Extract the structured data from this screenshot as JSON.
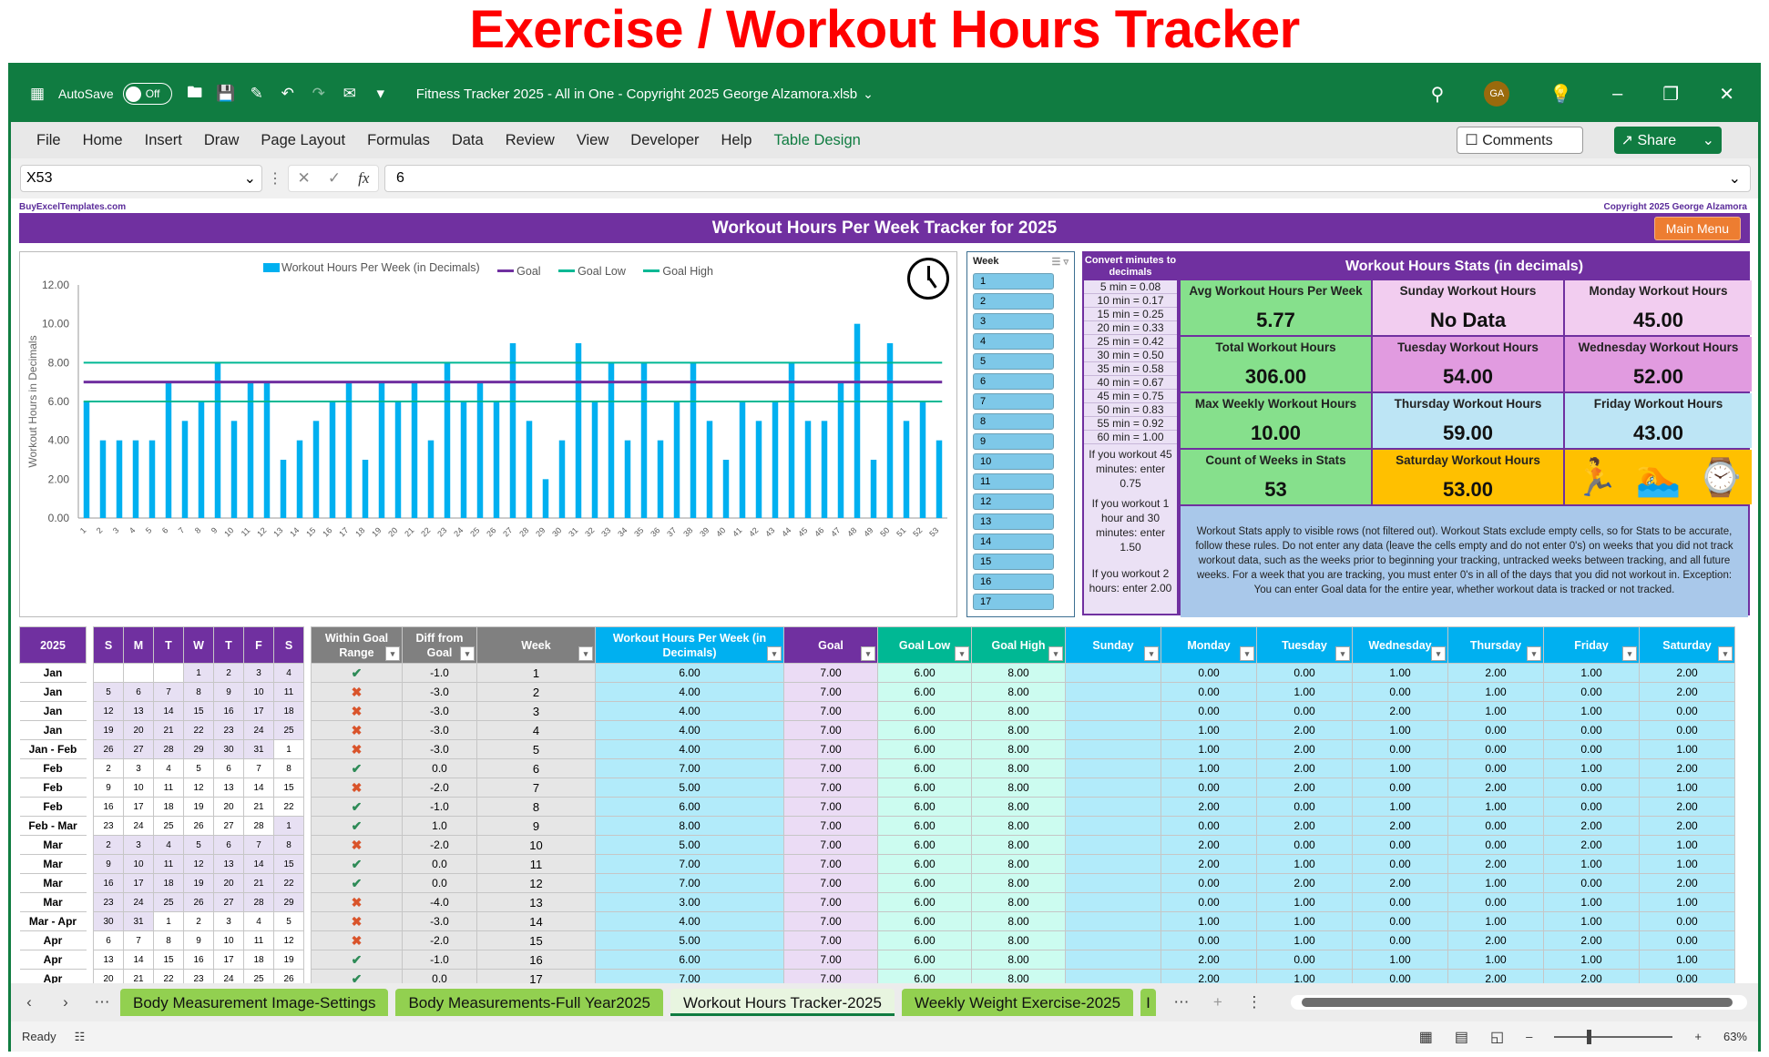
{
  "banner": {
    "title": "Exercise / Workout Hours Tracker"
  },
  "titlebar": {
    "autosave_label": "AutoSave",
    "autosave_state": "Off",
    "document_title": "Fitness Tracker 2025 - All in One - Copyright 2025 George Alzamora.xlsb",
    "avatar_initials": "GA"
  },
  "menu": {
    "items": [
      "File",
      "Home",
      "Insert",
      "Draw",
      "Page Layout",
      "Formulas",
      "Data",
      "Review",
      "View",
      "Developer",
      "Help",
      "Table Design"
    ],
    "comments_label": "Comments",
    "share_label": "Share"
  },
  "formula_bar": {
    "name_box": "X53",
    "fx_label": "fx",
    "value": "6"
  },
  "sheet": {
    "site_label": "BuyExcelTemplates.com",
    "copyright": "Copyright 2025  George Alzamora",
    "header_title": "Workout Hours Per Week Tracker for 2025",
    "main_menu_label": "Main Menu"
  },
  "chart_data": {
    "type": "bar",
    "title": "",
    "xlabel": "",
    "ylabel": "Workout  Hours in Decimals",
    "ylim": [
      0,
      12
    ],
    "yticks": [
      "0.00",
      "2.00",
      "4.00",
      "6.00",
      "8.00",
      "10.00",
      "12.00"
    ],
    "categories": [
      1,
      2,
      3,
      4,
      5,
      6,
      7,
      8,
      9,
      10,
      11,
      12,
      13,
      14,
      15,
      16,
      17,
      18,
      19,
      20,
      21,
      22,
      23,
      24,
      25,
      26,
      27,
      28,
      29,
      30,
      31,
      32,
      33,
      34,
      35,
      36,
      37,
      38,
      39,
      40,
      41,
      42,
      43,
      44,
      45,
      46,
      47,
      48,
      49,
      50,
      51,
      52,
      53
    ],
    "series": [
      {
        "name": "Workout Hours Per Week (in Decimals)",
        "type": "bar",
        "color": "#00b0f0",
        "values": [
          6,
          4,
          4,
          4,
          4,
          7,
          5,
          6,
          8,
          5,
          7,
          7,
          3,
          4,
          5,
          6,
          7,
          3,
          7,
          6,
          7,
          4,
          8,
          6,
          7,
          6,
          9,
          5,
          2,
          4,
          9,
          6,
          8,
          4,
          8,
          4,
          6,
          8,
          5,
          3,
          6,
          5,
          6,
          8,
          5,
          5,
          7,
          10,
          3,
          9,
          5,
          6,
          4
        ]
      },
      {
        "name": "Goal",
        "type": "line",
        "color": "#7030a0",
        "values": "constant 7.00"
      },
      {
        "name": "Goal Low",
        "type": "line",
        "color": "#00b894",
        "values": "constant 6.00"
      },
      {
        "name": "Goal High",
        "type": "line",
        "color": "#00b894",
        "values": "constant 8.00"
      }
    ],
    "legend_position": "top",
    "grid": false
  },
  "slicer": {
    "title": "Week",
    "items": [
      "1",
      "2",
      "3",
      "4",
      "5",
      "6",
      "7",
      "8",
      "9",
      "10",
      "11",
      "12",
      "13",
      "14",
      "15",
      "16",
      "17"
    ]
  },
  "converter": {
    "title": "Convert minutes to decimals",
    "rows": [
      "5 min  = 0.08",
      "10 min  = 0.17",
      "15 min  = 0.25",
      "20 min  = 0.33",
      "25 min  = 0.42",
      "30 min  = 0.50",
      "35 min  = 0.58",
      "40 min  = 0.67",
      "45 min  = 0.75",
      "50 min  = 0.83",
      "55 min  = 0.92",
      "60 min = 1.00"
    ],
    "note1": "If you workout 45 minutes: enter 0.75",
    "note2": "If you workout 1 hour and 30 minutes: enter 1.50",
    "note3": "If you workout 2 hours: enter 2.00"
  },
  "stats": {
    "title": "Workout Hours Stats (in decimals)",
    "cells": [
      {
        "label": "Avg Workout Hours Per Week",
        "value": "5.77"
      },
      {
        "label": "Sunday Workout Hours",
        "value": "No Data"
      },
      {
        "label": "Monday Workout Hours",
        "value": "45.00"
      },
      {
        "label": "Total Workout Hours",
        "value": "306.00"
      },
      {
        "label": "Tuesday Workout Hours",
        "value": "54.00"
      },
      {
        "label": "Wednesday Workout Hours",
        "value": "52.00"
      },
      {
        "label": "Max Weekly Workout Hours",
        "value": "10.00"
      },
      {
        "label": "Thursday Workout Hours",
        "value": "59.00"
      },
      {
        "label": "Friday Workout Hours",
        "value": "43.00"
      },
      {
        "label": "Count of Weeks in Stats",
        "value": "53"
      },
      {
        "label": "Saturday Workout Hours",
        "value": "53.00"
      }
    ],
    "icons": [
      "running-person-icon",
      "swimmer-icon",
      "smartwatch-icon"
    ],
    "note": "Workout Stats apply to visible rows (not filtered out). Workout Stats exclude empty cells, so for Stats to be accurate, follow these rules. Do not enter any data (leave the cells empty and do not enter 0's) on weeks that you did not track workout data, such as the weeks prior to beginning your tracking, untracked weeks between tracking, and all future weeks. For a week that you are tracking, you must enter 0's in all of the days that you did not workout in. Exception: You can enter Goal data for the entire year, whether workout data is tracked or not tracked."
  },
  "table": {
    "year": "2025",
    "cal_headers": [
      "S",
      "M",
      "T",
      "W",
      "T",
      "F",
      "S"
    ],
    "headers": [
      "Within Goal Range",
      "Diff from Goal",
      "Week",
      "Workout Hours Per Week (in Decimals)",
      "Goal",
      "Goal Low",
      "Goal High",
      "Sunday",
      "Monday",
      "Tuesday",
      "Wednesday",
      "Thursday",
      "Friday",
      "Saturday"
    ],
    "rows": [
      {
        "month": "Jan",
        "cal": [
          "",
          "",
          "",
          "1",
          "2",
          "3",
          "4"
        ],
        "ok": true,
        "diff": "-1.0",
        "week": "1",
        "hours": "6.00",
        "goal": "7.00",
        "low": "6.00",
        "high": "8.00",
        "days": [
          "",
          "0.00",
          "0.00",
          "1.00",
          "2.00",
          "1.00",
          "2.00"
        ]
      },
      {
        "month": "Jan",
        "cal": [
          "5",
          "6",
          "7",
          "8",
          "9",
          "10",
          "11"
        ],
        "ok": false,
        "diff": "-3.0",
        "week": "2",
        "hours": "4.00",
        "goal": "7.00",
        "low": "6.00",
        "high": "8.00",
        "days": [
          "",
          "0.00",
          "1.00",
          "0.00",
          "1.00",
          "0.00",
          "2.00"
        ]
      },
      {
        "month": "Jan",
        "cal": [
          "12",
          "13",
          "14",
          "15",
          "16",
          "17",
          "18"
        ],
        "ok": false,
        "diff": "-3.0",
        "week": "3",
        "hours": "4.00",
        "goal": "7.00",
        "low": "6.00",
        "high": "8.00",
        "days": [
          "",
          "0.00",
          "0.00",
          "2.00",
          "1.00",
          "1.00",
          "0.00"
        ]
      },
      {
        "month": "Jan",
        "cal": [
          "19",
          "20",
          "21",
          "22",
          "23",
          "24",
          "25"
        ],
        "ok": false,
        "diff": "-3.0",
        "week": "4",
        "hours": "4.00",
        "goal": "7.00",
        "low": "6.00",
        "high": "8.00",
        "days": [
          "",
          "1.00",
          "2.00",
          "1.00",
          "0.00",
          "0.00",
          "0.00"
        ]
      },
      {
        "month": "Jan - Feb",
        "cal": [
          "26",
          "27",
          "28",
          "29",
          "30",
          "31",
          "1"
        ],
        "ok": false,
        "diff": "-3.0",
        "week": "5",
        "hours": "4.00",
        "goal": "7.00",
        "low": "6.00",
        "high": "8.00",
        "days": [
          "",
          "1.00",
          "2.00",
          "0.00",
          "0.00",
          "0.00",
          "1.00"
        ]
      },
      {
        "month": "Feb",
        "cal": [
          "2",
          "3",
          "4",
          "5",
          "6",
          "7",
          "8"
        ],
        "ok": true,
        "diff": "0.0",
        "week": "6",
        "hours": "7.00",
        "goal": "7.00",
        "low": "6.00",
        "high": "8.00",
        "days": [
          "",
          "1.00",
          "2.00",
          "1.00",
          "0.00",
          "1.00",
          "2.00"
        ]
      },
      {
        "month": "Feb",
        "cal": [
          "9",
          "10",
          "11",
          "12",
          "13",
          "14",
          "15"
        ],
        "ok": false,
        "diff": "-2.0",
        "week": "7",
        "hours": "5.00",
        "goal": "7.00",
        "low": "6.00",
        "high": "8.00",
        "days": [
          "",
          "0.00",
          "2.00",
          "0.00",
          "2.00",
          "0.00",
          "1.00"
        ]
      },
      {
        "month": "Feb",
        "cal": [
          "16",
          "17",
          "18",
          "19",
          "20",
          "21",
          "22"
        ],
        "ok": true,
        "diff": "-1.0",
        "week": "8",
        "hours": "6.00",
        "goal": "7.00",
        "low": "6.00",
        "high": "8.00",
        "days": [
          "",
          "2.00",
          "0.00",
          "1.00",
          "1.00",
          "0.00",
          "2.00"
        ]
      },
      {
        "month": "Feb - Mar",
        "cal": [
          "23",
          "24",
          "25",
          "26",
          "27",
          "28",
          "1"
        ],
        "ok": true,
        "diff": "1.0",
        "week": "9",
        "hours": "8.00",
        "goal": "7.00",
        "low": "6.00",
        "high": "8.00",
        "days": [
          "",
          "0.00",
          "2.00",
          "2.00",
          "0.00",
          "2.00",
          "2.00"
        ]
      },
      {
        "month": "Mar",
        "cal": [
          "2",
          "3",
          "4",
          "5",
          "6",
          "7",
          "8"
        ],
        "ok": false,
        "diff": "-2.0",
        "week": "10",
        "hours": "5.00",
        "goal": "7.00",
        "low": "6.00",
        "high": "8.00",
        "days": [
          "",
          "2.00",
          "0.00",
          "0.00",
          "0.00",
          "2.00",
          "1.00"
        ]
      },
      {
        "month": "Mar",
        "cal": [
          "9",
          "10",
          "11",
          "12",
          "13",
          "14",
          "15"
        ],
        "ok": true,
        "diff": "0.0",
        "week": "11",
        "hours": "7.00",
        "goal": "7.00",
        "low": "6.00",
        "high": "8.00",
        "days": [
          "",
          "2.00",
          "1.00",
          "0.00",
          "2.00",
          "1.00",
          "1.00"
        ]
      },
      {
        "month": "Mar",
        "cal": [
          "16",
          "17",
          "18",
          "19",
          "20",
          "21",
          "22"
        ],
        "ok": true,
        "diff": "0.0",
        "week": "12",
        "hours": "7.00",
        "goal": "7.00",
        "low": "6.00",
        "high": "8.00",
        "days": [
          "",
          "0.00",
          "2.00",
          "2.00",
          "1.00",
          "0.00",
          "2.00"
        ]
      },
      {
        "month": "Mar",
        "cal": [
          "23",
          "24",
          "25",
          "26",
          "27",
          "28",
          "29"
        ],
        "ok": false,
        "diff": "-4.0",
        "week": "13",
        "hours": "3.00",
        "goal": "7.00",
        "low": "6.00",
        "high": "8.00",
        "days": [
          "",
          "0.00",
          "1.00",
          "0.00",
          "0.00",
          "1.00",
          "1.00"
        ]
      },
      {
        "month": "Mar - Apr",
        "cal": [
          "30",
          "31",
          "1",
          "2",
          "3",
          "4",
          "5"
        ],
        "ok": false,
        "diff": "-3.0",
        "week": "14",
        "hours": "4.00",
        "goal": "7.00",
        "low": "6.00",
        "high": "8.00",
        "days": [
          "",
          "1.00",
          "1.00",
          "0.00",
          "1.00",
          "1.00",
          "0.00"
        ]
      },
      {
        "month": "Apr",
        "cal": [
          "6",
          "7",
          "8",
          "9",
          "10",
          "11",
          "12"
        ],
        "ok": false,
        "diff": "-2.0",
        "week": "15",
        "hours": "5.00",
        "goal": "7.00",
        "low": "6.00",
        "high": "8.00",
        "days": [
          "",
          "0.00",
          "1.00",
          "0.00",
          "2.00",
          "2.00",
          "0.00"
        ]
      },
      {
        "month": "Apr",
        "cal": [
          "13",
          "14",
          "15",
          "16",
          "17",
          "18",
          "19"
        ],
        "ok": true,
        "diff": "-1.0",
        "week": "16",
        "hours": "6.00",
        "goal": "7.00",
        "low": "6.00",
        "high": "8.00",
        "days": [
          "",
          "2.00",
          "0.00",
          "1.00",
          "1.00",
          "1.00",
          "1.00"
        ]
      },
      {
        "month": "Apr",
        "cal": [
          "20",
          "21",
          "22",
          "23",
          "24",
          "25",
          "26"
        ],
        "ok": true,
        "diff": "0.0",
        "week": "17",
        "hours": "7.00",
        "goal": "7.00",
        "low": "6.00",
        "high": "8.00",
        "days": [
          "",
          "2.00",
          "1.00",
          "0.00",
          "2.00",
          "2.00",
          "0.00"
        ]
      }
    ]
  },
  "sheet_tabs": {
    "tabs": [
      "Body Measurement Image-Settings",
      "Body Measurements-Full Year2025",
      "Workout Hours Tracker-2025",
      "Weekly Weight Exercise-2025",
      "I"
    ],
    "active_index": 2
  },
  "statusbar": {
    "status": "Ready",
    "zoom": "63%"
  }
}
